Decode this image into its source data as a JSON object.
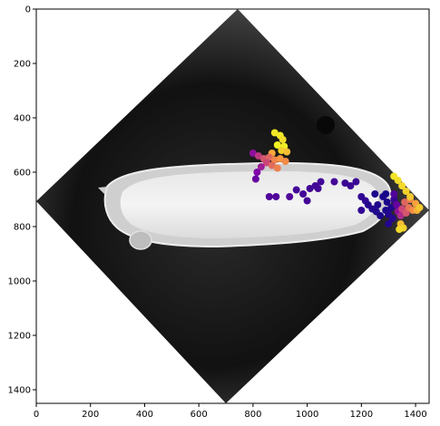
{
  "chart_data": {
    "type": "scatter",
    "title": "",
    "xlabel": "",
    "ylabel": "",
    "xlim": [
      0,
      1450
    ],
    "ylim": [
      1450,
      0
    ],
    "x_ticks": [
      0,
      200,
      400,
      600,
      800,
      1000,
      1200,
      1400
    ],
    "y_ticks": [
      0,
      200,
      400,
      600,
      800,
      1000,
      1200,
      1400
    ],
    "background_image": "grayscale microscopy image of an elongated embryo, rotated 45 degrees in a diamond-shaped frame",
    "colormap": "plasma",
    "points": [
      {
        "x": 880,
        "y": 455,
        "c": 0.95
      },
      {
        "x": 900,
        "y": 465,
        "c": 0.96
      },
      {
        "x": 910,
        "y": 480,
        "c": 0.93
      },
      {
        "x": 890,
        "y": 500,
        "c": 0.98
      },
      {
        "x": 915,
        "y": 505,
        "c": 0.97
      },
      {
        "x": 905,
        "y": 520,
        "c": 0.9
      },
      {
        "x": 870,
        "y": 530,
        "c": 0.8
      },
      {
        "x": 925,
        "y": 525,
        "c": 0.85
      },
      {
        "x": 800,
        "y": 530,
        "c": 0.3
      },
      {
        "x": 820,
        "y": 540,
        "c": 0.45
      },
      {
        "x": 840,
        "y": 550,
        "c": 0.55
      },
      {
        "x": 860,
        "y": 545,
        "c": 0.6
      },
      {
        "x": 880,
        "y": 555,
        "c": 0.7
      },
      {
        "x": 900,
        "y": 550,
        "c": 0.75
      },
      {
        "x": 920,
        "y": 560,
        "c": 0.72
      },
      {
        "x": 850,
        "y": 565,
        "c": 0.5
      },
      {
        "x": 870,
        "y": 575,
        "c": 0.62
      },
      {
        "x": 830,
        "y": 580,
        "c": 0.35
      },
      {
        "x": 890,
        "y": 585,
        "c": 0.68
      },
      {
        "x": 815,
        "y": 600,
        "c": 0.25
      },
      {
        "x": 810,
        "y": 625,
        "c": 0.2
      },
      {
        "x": 860,
        "y": 690,
        "c": 0.15
      },
      {
        "x": 885,
        "y": 690,
        "c": 0.15
      },
      {
        "x": 935,
        "y": 690,
        "c": 0.15
      },
      {
        "x": 960,
        "y": 665,
        "c": 0.12
      },
      {
        "x": 985,
        "y": 680,
        "c": 0.12
      },
      {
        "x": 1000,
        "y": 705,
        "c": 0.12
      },
      {
        "x": 1010,
        "y": 660,
        "c": 0.12
      },
      {
        "x": 1030,
        "y": 650,
        "c": 0.12
      },
      {
        "x": 1050,
        "y": 635,
        "c": 0.12
      },
      {
        "x": 1040,
        "y": 660,
        "c": 0.12
      },
      {
        "x": 1100,
        "y": 635,
        "c": 0.12
      },
      {
        "x": 1140,
        "y": 640,
        "c": 0.1
      },
      {
        "x": 1160,
        "y": 650,
        "c": 0.1
      },
      {
        "x": 1180,
        "y": 635,
        "c": 0.1
      },
      {
        "x": 1200,
        "y": 690,
        "c": 0.08
      },
      {
        "x": 1215,
        "y": 705,
        "c": 0.08
      },
      {
        "x": 1200,
        "y": 740,
        "c": 0.08
      },
      {
        "x": 1225,
        "y": 720,
        "c": 0.06
      },
      {
        "x": 1240,
        "y": 735,
        "c": 0.05
      },
      {
        "x": 1255,
        "y": 745,
        "c": 0.04
      },
      {
        "x": 1260,
        "y": 720,
        "c": 0.04
      },
      {
        "x": 1280,
        "y": 690,
        "c": 0.03
      },
      {
        "x": 1295,
        "y": 710,
        "c": 0.03
      },
      {
        "x": 1290,
        "y": 740,
        "c": 0.03
      },
      {
        "x": 1300,
        "y": 755,
        "c": 0.05
      },
      {
        "x": 1310,
        "y": 730,
        "c": 0.04
      },
      {
        "x": 1315,
        "y": 770,
        "c": 0.06
      },
      {
        "x": 1300,
        "y": 790,
        "c": 0.05
      },
      {
        "x": 1320,
        "y": 700,
        "c": 0.1
      },
      {
        "x": 1330,
        "y": 720,
        "c": 0.2
      },
      {
        "x": 1335,
        "y": 745,
        "c": 0.3
      },
      {
        "x": 1345,
        "y": 760,
        "c": 0.4
      },
      {
        "x": 1350,
        "y": 735,
        "c": 0.5
      },
      {
        "x": 1360,
        "y": 710,
        "c": 0.6
      },
      {
        "x": 1365,
        "y": 750,
        "c": 0.55
      },
      {
        "x": 1375,
        "y": 730,
        "c": 0.65
      },
      {
        "x": 1380,
        "y": 700,
        "c": 0.7
      },
      {
        "x": 1390,
        "y": 740,
        "c": 0.72
      },
      {
        "x": 1400,
        "y": 715,
        "c": 0.78
      },
      {
        "x": 1405,
        "y": 740,
        "c": 0.82
      },
      {
        "x": 1415,
        "y": 730,
        "c": 0.88
      },
      {
        "x": 1320,
        "y": 615,
        "c": 0.95
      },
      {
        "x": 1335,
        "y": 630,
        "c": 0.93
      },
      {
        "x": 1350,
        "y": 650,
        "c": 0.92
      },
      {
        "x": 1365,
        "y": 670,
        "c": 0.9
      },
      {
        "x": 1380,
        "y": 690,
        "c": 0.88
      },
      {
        "x": 1345,
        "y": 790,
        "c": 0.85
      },
      {
        "x": 1355,
        "y": 805,
        "c": 0.9
      },
      {
        "x": 1340,
        "y": 810,
        "c": 0.92
      },
      {
        "x": 1290,
        "y": 680,
        "c": 0.02
      },
      {
        "x": 1250,
        "y": 680,
        "c": 0.03
      },
      {
        "x": 1270,
        "y": 760,
        "c": 0.03
      },
      {
        "x": 1320,
        "y": 680,
        "c": 0.15
      }
    ]
  }
}
